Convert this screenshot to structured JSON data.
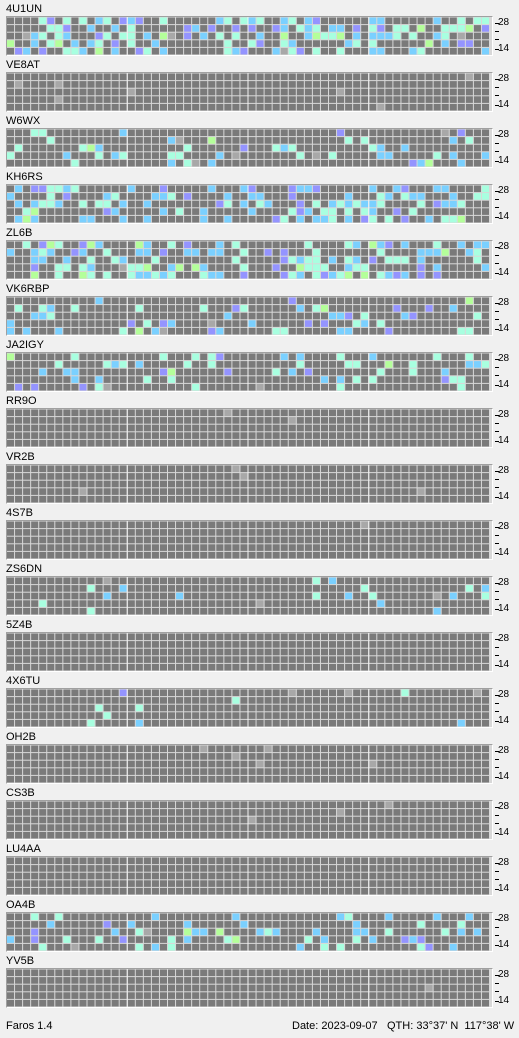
{
  "app": {
    "name": "Faros 1.4"
  },
  "status": {
    "date": "Date: 2023-09-07",
    "qth": "QTH: 33°37' N  117°38' W"
  },
  "scale": {
    "top": "28",
    "bottom": "14"
  },
  "colors": {
    "grid_bg": "#d8d8d8",
    "cell_off": "#7a7a7a",
    "cell_lo": "#9494ff",
    "cell_mid": "#7ad0ff",
    "cell_hi": "#a8ffe0",
    "cell_max": "#b4ff9a",
    "cell_mark": "#a8a8a8"
  },
  "beacons": [
    {
      "callsign": "4U1UN",
      "level": "high"
    },
    {
      "callsign": "VE8AT",
      "level": "none"
    },
    {
      "callsign": "W6WX",
      "level": "medium"
    },
    {
      "callsign": "KH6RS",
      "level": "high"
    },
    {
      "callsign": "ZL6B",
      "level": "high"
    },
    {
      "callsign": "VK6RBP",
      "level": "medium"
    },
    {
      "callsign": "JA2IGY",
      "level": "medium"
    },
    {
      "callsign": "RR9O",
      "level": "none"
    },
    {
      "callsign": "VR2B",
      "level": "none"
    },
    {
      "callsign": "4S7B",
      "level": "none"
    },
    {
      "callsign": "ZS6DN",
      "level": "low"
    },
    {
      "callsign": "5Z4B",
      "level": "none"
    },
    {
      "callsign": "4X6TU",
      "level": "low"
    },
    {
      "callsign": "OH2B",
      "level": "none"
    },
    {
      "callsign": "CS3B",
      "level": "none"
    },
    {
      "callsign": "LU4AA",
      "level": "none"
    },
    {
      "callsign": "OA4B",
      "level": "medium"
    },
    {
      "callsign": "YV5B",
      "level": "none"
    }
  ]
}
